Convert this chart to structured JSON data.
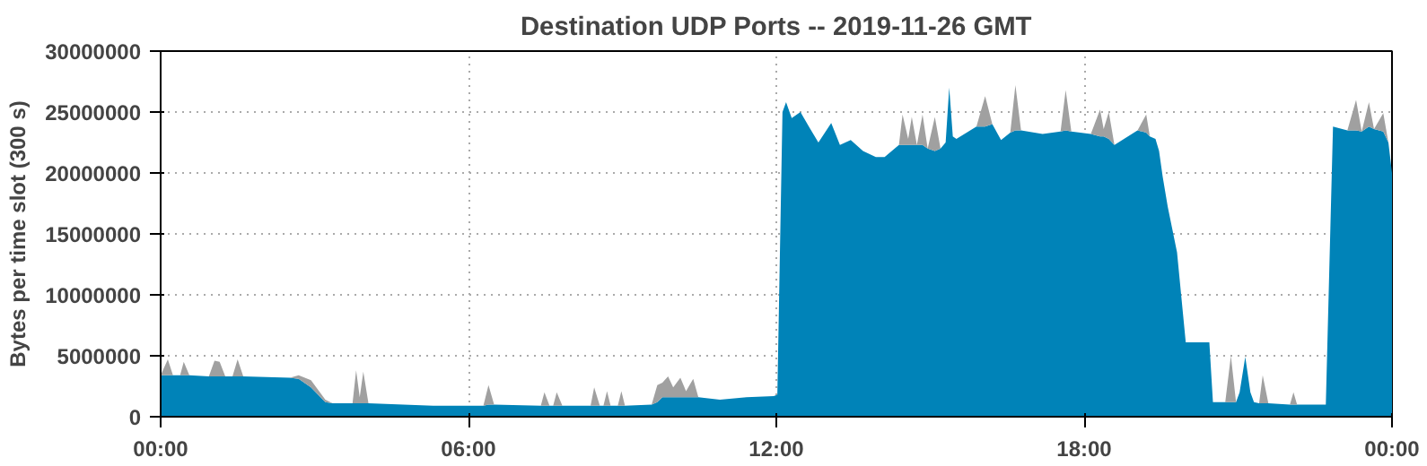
{
  "chart_data": {
    "type": "area",
    "stacked": true,
    "title": "Destination UDP Ports -- 2019-11-26 GMT",
    "ylabel": "Bytes per time slot (300 s)",
    "x": [
      0,
      0.14,
      0.24,
      0.38,
      0.45,
      0.56,
      0.94,
      1.05,
      1.15,
      1.26,
      1.4,
      1.5,
      1.61,
      2.52,
      2.69,
      2.93,
      3.21,
      3.35,
      3.74,
      3.81,
      3.88,
      3.95,
      4.05,
      5.31,
      6.29,
      6.39,
      6.5,
      7.41,
      7.48,
      7.58,
      7.65,
      7.72,
      7.83,
      8.38,
      8.45,
      8.56,
      8.63,
      8.7,
      8.77,
      8.91,
      8.98,
      9.05,
      9.57,
      9.68,
      9.78,
      9.89,
      9.99,
      10.13,
      10.24,
      10.38,
      10.48,
      10.9,
      11.42,
      11.95,
      12.02,
      12.12,
      12.19,
      12.3,
      12.47,
      12.65,
      12.82,
      13.07,
      13.24,
      13.45,
      13.69,
      13.94,
      14.11,
      14.39,
      14.46,
      14.57,
      14.64,
      14.74,
      14.85,
      14.95,
      15.09,
      15.2,
      15.3,
      15.37,
      15.44,
      15.51,
      15.9,
      16.07,
      16.21,
      16.38,
      16.56,
      16.66,
      16.77,
      17.19,
      17.54,
      17.64,
      17.75,
      18.13,
      18.31,
      18.38,
      18.48,
      18.59,
      19.04,
      19.21,
      19.28,
      19.39,
      19.46,
      19.53,
      19.63,
      19.81,
      19.98,
      20.44,
      20.51,
      20.75,
      20.86,
      20.96,
      21.03,
      21.14,
      21.24,
      21.31,
      21.41,
      21.48,
      21.59,
      22.01,
      22.08,
      22.15,
      22.71,
      22.85,
      23.13,
      23.3,
      23.41,
      23.55,
      23.65,
      23.83,
      23.93,
      24
    ],
    "series": [
      {
        "color": "#0083b8",
        "values": [
          3400000,
          3400000,
          3400000,
          3400000,
          3400000,
          3400000,
          3300000,
          3300000,
          3300000,
          3300000,
          3300000,
          3300000,
          3300000,
          3200000,
          3100000,
          2400000,
          1200000,
          1100000,
          1100000,
          1100000,
          1100000,
          1100000,
          1100000,
          900000,
          900000,
          1000000,
          1000000,
          900000,
          900000,
          900000,
          900000,
          900000,
          900000,
          900000,
          900000,
          900000,
          900000,
          900000,
          900000,
          900000,
          900000,
          900000,
          1000000,
          1200000,
          1600000,
          1600000,
          1600000,
          1600000,
          1600000,
          1600000,
          1600000,
          1400000,
          1600000,
          1700000,
          1800000,
          25000000,
          25800000,
          24500000,
          25000000,
          23700000,
          22500000,
          24100000,
          22300000,
          22700000,
          21800000,
          21300000,
          21300000,
          22300000,
          22300000,
          22300000,
          22300000,
          22300000,
          22300000,
          22000000,
          21800000,
          22000000,
          22500000,
          27000000,
          23000000,
          22800000,
          23800000,
          23800000,
          24000000,
          22700000,
          23300000,
          23500000,
          23500000,
          23200000,
          23400000,
          23500000,
          23400000,
          23200000,
          23000000,
          23000000,
          22800000,
          22300000,
          23500000,
          23300000,
          23000000,
          22800000,
          21800000,
          19700000,
          17200000,
          13500000,
          6100000,
          6100000,
          1200000,
          1200000,
          1200000,
          1200000,
          2000000,
          4900000,
          2000000,
          1200000,
          1100000,
          1100000,
          1100000,
          1000000,
          1000000,
          1000000,
          1000000,
          23800000,
          23500000,
          23500000,
          23400000,
          23800000,
          23600000,
          23400000,
          22500000,
          20000000
        ]
      },
      {
        "color": "#a0a0a0",
        "values": [
          0,
          1300000,
          0,
          0,
          1100000,
          0,
          0,
          1300000,
          1200000,
          0,
          0,
          1400000,
          0,
          0,
          300000,
          600000,
          200000,
          0,
          0,
          2700000,
          500000,
          2600000,
          0,
          0,
          0,
          1600000,
          0,
          0,
          1100000,
          0,
          0,
          1100000,
          0,
          0,
          1500000,
          0,
          0,
          1200000,
          0,
          0,
          1200000,
          0,
          0,
          1400000,
          1200000,
          1700000,
          800000,
          1600000,
          500000,
          1500000,
          0,
          0,
          0,
          0,
          0,
          0,
          0,
          0,
          0,
          0,
          0,
          0,
          0,
          0,
          0,
          0,
          0,
          0,
          2500000,
          500000,
          2300000,
          0,
          2500000,
          0,
          2800000,
          0,
          0,
          0,
          0,
          0,
          0,
          2500000,
          0,
          0,
          0,
          3700000,
          0,
          0,
          0,
          3300000,
          0,
          0,
          2200000,
          600000,
          2200000,
          0,
          0,
          1500000,
          0,
          0,
          0,
          0,
          0,
          0,
          0,
          0,
          0,
          0,
          3800000,
          0,
          0,
          0,
          0,
          0,
          0,
          2300000,
          0,
          0,
          1000000,
          0,
          0,
          0,
          0,
          2500000,
          0,
          2000000,
          0,
          1500000,
          0,
          0
        ]
      }
    ],
    "xlim": [
      0,
      24
    ],
    "xticks": [
      {
        "value": 0,
        "label": "00:00"
      },
      {
        "value": 6,
        "label": "06:00"
      },
      {
        "value": 12,
        "label": "12:00"
      },
      {
        "value": 18,
        "label": "18:00"
      },
      {
        "value": 24,
        "label": "00:00"
      }
    ],
    "ylim": [
      0,
      30000000
    ],
    "yticks": [
      0,
      5000000,
      10000000,
      15000000,
      20000000,
      25000000,
      30000000
    ],
    "grid": true
  }
}
